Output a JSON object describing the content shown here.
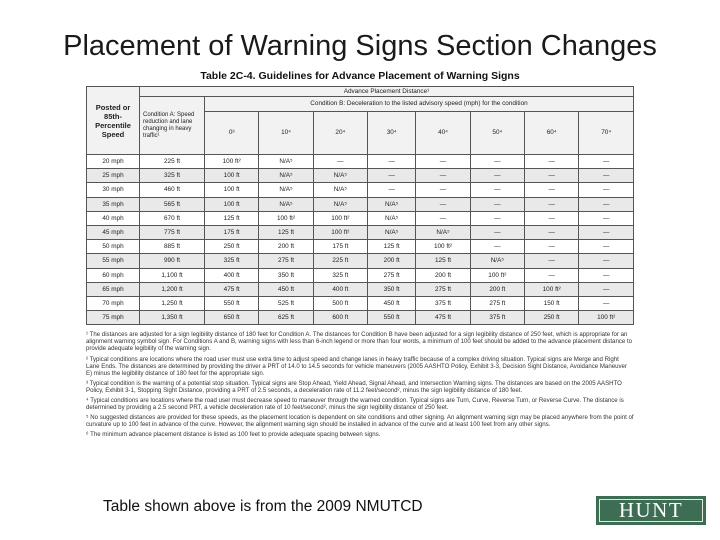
{
  "slide_title": "Placement of Warning Signs Section Changes",
  "table": {
    "title": "Table 2C-4. Guidelines for Advance Placement of Warning Signs",
    "col_speed": "Posted or 85th-Percentile Speed",
    "col_condition_a": "Condition A: Speed reduction and lane changing in heavy traffic¹",
    "group_header": "Advance Placement Distance¹",
    "condition_b": "Condition B: Deceleration to the listed advisory speed (mph) for the condition",
    "b_columns": [
      "0³",
      "10⁴",
      "20⁴",
      "30⁴",
      "40⁴",
      "50⁴",
      "60⁴",
      "70⁴"
    ],
    "rows": [
      [
        "20 mph",
        "225 ft",
        "100 ft²",
        "N/A⁵",
        "—",
        "—",
        "—",
        "—",
        "—",
        "—"
      ],
      [
        "25 mph",
        "325 ft",
        "100 ft",
        "N/A⁵",
        "N/A⁵",
        "—",
        "—",
        "—",
        "—",
        "—"
      ],
      [
        "30 mph",
        "460 ft",
        "100 ft",
        "N/A⁵",
        "N/A⁵",
        "—",
        "—",
        "—",
        "—",
        "—"
      ],
      [
        "35 mph",
        "565 ft",
        "100 ft",
        "N/A⁵",
        "N/A⁵",
        "N/A⁵",
        "—",
        "—",
        "—",
        "—"
      ],
      [
        "40 mph",
        "670 ft",
        "125 ft",
        "100 ft²",
        "100 ft²",
        "N/A⁵",
        "—",
        "—",
        "—",
        "—"
      ],
      [
        "45 mph",
        "775 ft",
        "175 ft",
        "125 ft",
        "100 ft²",
        "N/A⁵",
        "N/A⁵",
        "—",
        "—",
        "—"
      ],
      [
        "50 mph",
        "885 ft",
        "250 ft",
        "200 ft",
        "175 ft",
        "125 ft",
        "100 ft²",
        "—",
        "—",
        "—"
      ],
      [
        "55 mph",
        "990 ft",
        "325 ft",
        "275 ft",
        "225 ft",
        "200 ft",
        "125 ft",
        "N/A⁵",
        "—",
        "—"
      ],
      [
        "60 mph",
        "1,100 ft",
        "400 ft",
        "350 ft",
        "325 ft",
        "275 ft",
        "200 ft",
        "100 ft²",
        "—",
        "—"
      ],
      [
        "65 mph",
        "1,200 ft",
        "475 ft",
        "450 ft",
        "400 ft",
        "350 ft",
        "275 ft",
        "200 ft",
        "100 ft²",
        "—"
      ],
      [
        "70 mph",
        "1,250 ft",
        "550 ft",
        "525 ft",
        "500 ft",
        "450 ft",
        "375 ft",
        "275 ft",
        "150 ft",
        "—"
      ],
      [
        "75 mph",
        "1,350 ft",
        "650 ft",
        "625 ft",
        "600 ft",
        "550 ft",
        "475 ft",
        "375 ft",
        "250 ft",
        "100 ft²"
      ]
    ],
    "notes": [
      "¹ The distances are adjusted for a sign legibility distance of 180 feet for Condition A. The distances for Condition B have been adjusted for a sign legibility distance of 250 feet, which is appropriate for an alignment warning symbol sign. For Conditions A and B, warning signs with less than 6-inch legend or more than four words, a minimum of 100 feet should be added to the advance placement distance to provide adequate legibility of the warning sign.",
      "² Typical conditions are locations where the road user must use extra time to adjust speed and change lanes in heavy traffic because of a complex driving situation. Typical signs are Merge and Right Lane Ends. The distances are determined by providing the driver a PRT of 14.0 to 14.5 seconds for vehicle maneuvers (2005 AASHTO Policy, Exhibit 3-3, Decision Sight Distance, Avoidance Maneuver E) minus the legibility distance of 180 feet for the appropriate sign.",
      "³ Typical condition is the warning of a potential stop situation. Typical signs are Stop Ahead, Yield Ahead, Signal Ahead, and Intersection Warning signs. The distances are based on the 2005 AASHTO Policy, Exhibit 3-1, Stopping Sight Distance, providing a PRT of 2.5 seconds, a deceleration rate of 11.2 feet/second², minus the sign legibility distance of 180 feet.",
      "⁴ Typical conditions are locations where the road user must decrease speed to maneuver through the warned condition. Typical signs are Turn, Curve, Reverse Turn, or Reverse Curve. The distance is determined by providing a 2.5 second PRT, a vehicle deceleration rate of 10 feet/second², minus the sign legibility distance of 250 feet.",
      "⁵ No suggested distances are provided for these speeds, as the placement location is dependent on site conditions and other signing. An alignment warning sign may be placed anywhere from the point of curvature up to 100 feet in advance of the curve. However, the alignment warning sign should be installed in advance of the curve and at least 100 feet from any other signs.",
      "⁶ The minimum advance placement distance is listed as 100 feet to provide adequate spacing between signs."
    ]
  },
  "caption": "Table shown above is from the 2009 NMUTCD",
  "logo_text": "HUNT",
  "colors": {
    "logo_bg": "#3d6e54",
    "row_shade": "#e9e9e9"
  }
}
